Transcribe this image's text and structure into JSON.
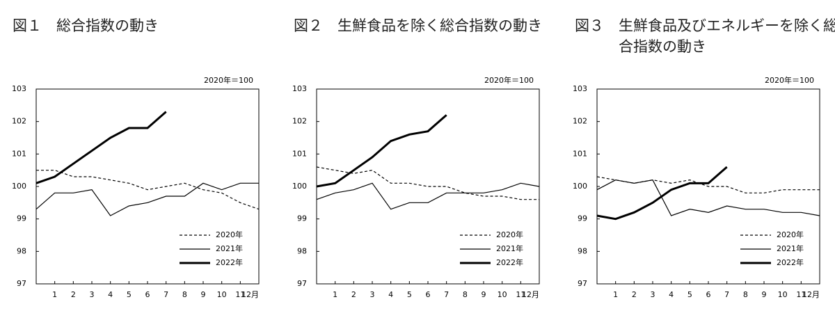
{
  "chart_data": [
    {
      "type": "line",
      "title": "図１　総合指数の動き",
      "unit_label": "2020年＝100",
      "x": [
        0,
        1,
        2,
        3,
        4,
        5,
        6,
        7,
        8,
        9,
        10,
        11,
        12
      ],
      "xlim": [
        0,
        12
      ],
      "xticks": [
        1,
        2,
        3,
        4,
        5,
        6,
        7,
        8,
        9,
        10,
        11,
        {
          "value": 12,
          "label": "12月"
        }
      ],
      "ylim": [
        97,
        103
      ],
      "yticks": [
        97,
        98,
        99,
        100,
        101,
        102,
        103
      ],
      "legend": "lower right",
      "series": [
        {
          "name": "2020年",
          "color": "#000000",
          "linestyle": "dashed",
          "values": [
            100.5,
            100.5,
            100.3,
            100.3,
            100.2,
            100.1,
            99.9,
            100.0,
            100.1,
            99.9,
            99.8,
            99.5,
            99.3
          ]
        },
        {
          "name": "2021年",
          "color": "#000000",
          "linestyle": "solid",
          "values": [
            99.3,
            99.8,
            99.8,
            99.9,
            99.1,
            99.4,
            99.5,
            99.7,
            99.7,
            100.1,
            99.9,
            100.1,
            100.1
          ]
        },
        {
          "name": "2022年",
          "color": "#000000",
          "linestyle": "bold",
          "values": [
            100.1,
            100.3,
            100.7,
            101.1,
            101.5,
            101.8,
            101.8,
            102.3,
            null,
            null,
            null,
            null,
            null
          ]
        }
      ]
    },
    {
      "type": "line",
      "title": "図２　生鮮食品を除く総合指数の動き",
      "unit_label": "2020年＝100",
      "x": [
        0,
        1,
        2,
        3,
        4,
        5,
        6,
        7,
        8,
        9,
        10,
        11,
        12
      ],
      "xlim": [
        0,
        12
      ],
      "xticks": [
        1,
        2,
        3,
        4,
        5,
        6,
        7,
        8,
        9,
        10,
        11,
        {
          "value": 12,
          "label": "12月"
        }
      ],
      "ylim": [
        97,
        103
      ],
      "yticks": [
        97,
        98,
        99,
        100,
        101,
        102,
        103
      ],
      "legend": "lower right",
      "series": [
        {
          "name": "2020年",
          "color": "#000000",
          "linestyle": "dashed",
          "values": [
            100.6,
            100.5,
            100.4,
            100.5,
            100.1,
            100.1,
            100.0,
            100.0,
            99.8,
            99.7,
            99.7,
            99.6,
            99.6
          ]
        },
        {
          "name": "2021年",
          "color": "#000000",
          "linestyle": "solid",
          "values": [
            99.6,
            99.8,
            99.9,
            100.1,
            99.3,
            99.5,
            99.5,
            99.8,
            99.8,
            99.8,
            99.9,
            100.1,
            100.0
          ]
        },
        {
          "name": "2022年",
          "color": "#000000",
          "linestyle": "bold",
          "values": [
            100.0,
            100.1,
            100.5,
            100.9,
            101.4,
            101.6,
            101.7,
            102.2,
            null,
            null,
            null,
            null,
            null
          ]
        }
      ]
    },
    {
      "type": "line",
      "title": "図３　生鮮食品及びエネルギーを除く総合指数の動き",
      "unit_label": "2020年＝100",
      "x": [
        0,
        1,
        2,
        3,
        4,
        5,
        6,
        7,
        8,
        9,
        10,
        11,
        12
      ],
      "xlim": [
        0,
        12
      ],
      "xticks": [
        1,
        2,
        3,
        4,
        5,
        6,
        7,
        8,
        9,
        10,
        11,
        {
          "value": 12,
          "label": "12月"
        }
      ],
      "ylim": [
        97,
        103
      ],
      "yticks": [
        97,
        98,
        99,
        100,
        101,
        102,
        103
      ],
      "legend": "lower right",
      "series": [
        {
          "name": "2020年",
          "color": "#000000",
          "linestyle": "dashed",
          "values": [
            100.3,
            100.2,
            100.1,
            100.2,
            100.1,
            100.2,
            100.0,
            100.0,
            99.8,
            99.8,
            99.9,
            99.9,
            99.9
          ]
        },
        {
          "name": "2021年",
          "color": "#000000",
          "linestyle": "solid",
          "values": [
            99.9,
            100.2,
            100.1,
            100.2,
            99.1,
            99.3,
            99.2,
            99.4,
            99.3,
            99.3,
            99.2,
            99.2,
            99.1
          ]
        },
        {
          "name": "2022年",
          "color": "#000000",
          "linestyle": "bold",
          "values": [
            99.1,
            99.0,
            99.2,
            99.5,
            99.9,
            100.1,
            100.1,
            100.6,
            null,
            null,
            null,
            null,
            null
          ]
        }
      ]
    }
  ]
}
